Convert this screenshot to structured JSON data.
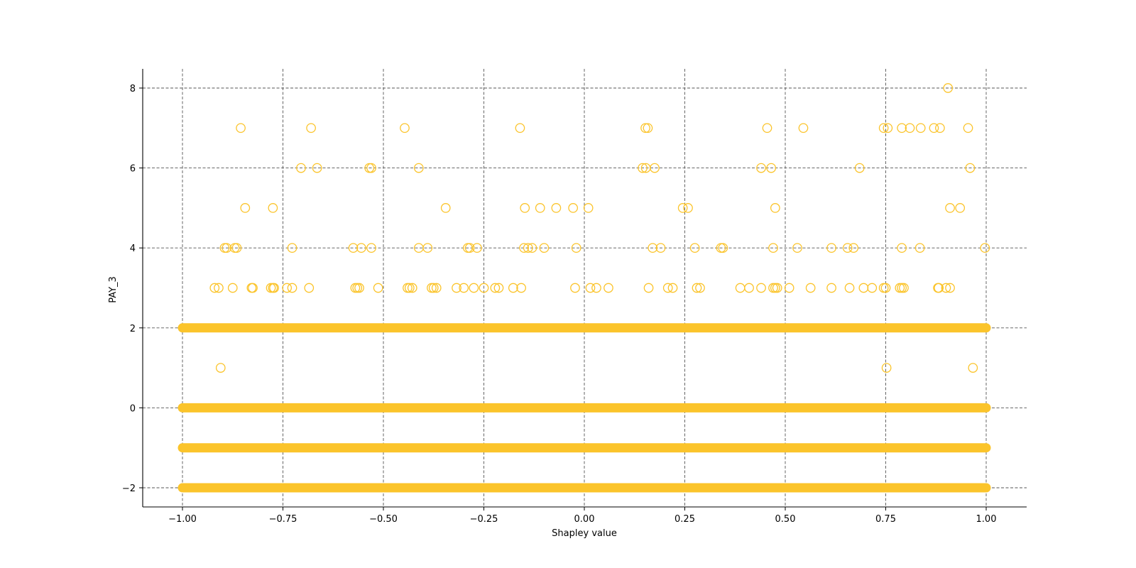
{
  "chart_data": {
    "type": "scatter",
    "title": "",
    "xlabel": "Shapley value",
    "ylabel": "PAY_3",
    "xlim": [
      -1.1,
      1.1
    ],
    "ylim": [
      -2.5,
      8.5
    ],
    "xticks": [
      -1.0,
      -0.75,
      -0.5,
      -0.25,
      0.0,
      0.25,
      0.5,
      0.75,
      1.0
    ],
    "xtick_labels": [
      "−1.00",
      "−0.75",
      "−0.50",
      "−0.25",
      "0.00",
      "0.25",
      "0.50",
      "0.75",
      "1.00"
    ],
    "yticks": [
      -2,
      0,
      2,
      4,
      6,
      8
    ],
    "ytick_labels": [
      "−2",
      "0",
      "2",
      "4",
      "6",
      "8"
    ],
    "grid": true,
    "legend": null,
    "marker_color": "#FBC42B",
    "dense_bands": [
      {
        "y": 2,
        "x_from": -1.0,
        "x_to": 1.0
      },
      {
        "y": 0,
        "x_from": -1.0,
        "x_to": 1.0
      },
      {
        "y": -1,
        "x_from": -1.0,
        "x_to": 1.0
      },
      {
        "y": -2,
        "x_from": -1.0,
        "x_to": 1.0
      }
    ],
    "points": [
      {
        "y": 8,
        "x": [
          0.905
        ]
      },
      {
        "y": 7,
        "x": [
          -0.855,
          -0.68,
          -0.447,
          -0.16,
          0.152,
          0.158,
          0.455,
          0.545,
          0.745,
          0.755,
          0.79,
          0.81,
          0.837,
          0.87,
          0.885,
          0.955
        ]
      },
      {
        "y": 6,
        "x": [
          -0.705,
          -0.665,
          -0.535,
          -0.53,
          -0.412,
          0.145,
          0.153,
          0.175,
          0.44,
          0.465,
          0.685,
          0.96
        ]
      },
      {
        "y": 5,
        "x": [
          -0.844,
          -0.775,
          -0.345,
          -0.148,
          -0.11,
          -0.07,
          -0.028,
          0.01,
          0.245,
          0.258,
          0.475,
          0.91,
          0.935
        ]
      },
      {
        "y": 4,
        "x": [
          -0.895,
          -0.89,
          -0.87,
          -0.865,
          -0.727,
          -0.575,
          -0.555,
          -0.53,
          -0.412,
          -0.39,
          -0.29,
          -0.285,
          -0.267,
          -0.15,
          -0.14,
          -0.13,
          -0.1,
          -0.02,
          0.17,
          0.19,
          0.275,
          0.34,
          0.345,
          0.47,
          0.53,
          0.615,
          0.655,
          0.67,
          0.79,
          0.835,
          0.997
        ]
      },
      {
        "y": 3,
        "x": [
          -0.92,
          -0.91,
          -0.875,
          -0.828,
          -0.825,
          -0.78,
          -0.775,
          -0.772,
          -0.74,
          -0.727,
          -0.685,
          -0.57,
          -0.565,
          -0.56,
          -0.513,
          -0.44,
          -0.435,
          -0.428,
          -0.38,
          -0.375,
          -0.368,
          -0.318,
          -0.3,
          -0.275,
          -0.25,
          -0.222,
          -0.213,
          -0.177,
          -0.157,
          -0.023,
          0.015,
          0.03,
          0.06,
          0.16,
          0.208,
          0.22,
          0.28,
          0.288,
          0.388,
          0.41,
          0.44,
          0.47,
          0.475,
          0.48,
          0.51,
          0.563,
          0.615,
          0.66,
          0.695,
          0.716,
          0.745,
          0.75,
          0.785,
          0.79,
          0.795,
          0.88,
          0.882,
          0.9,
          0.91
        ]
      },
      {
        "y": 1,
        "x": [
          -0.905,
          0.752,
          0.967
        ]
      }
    ]
  }
}
